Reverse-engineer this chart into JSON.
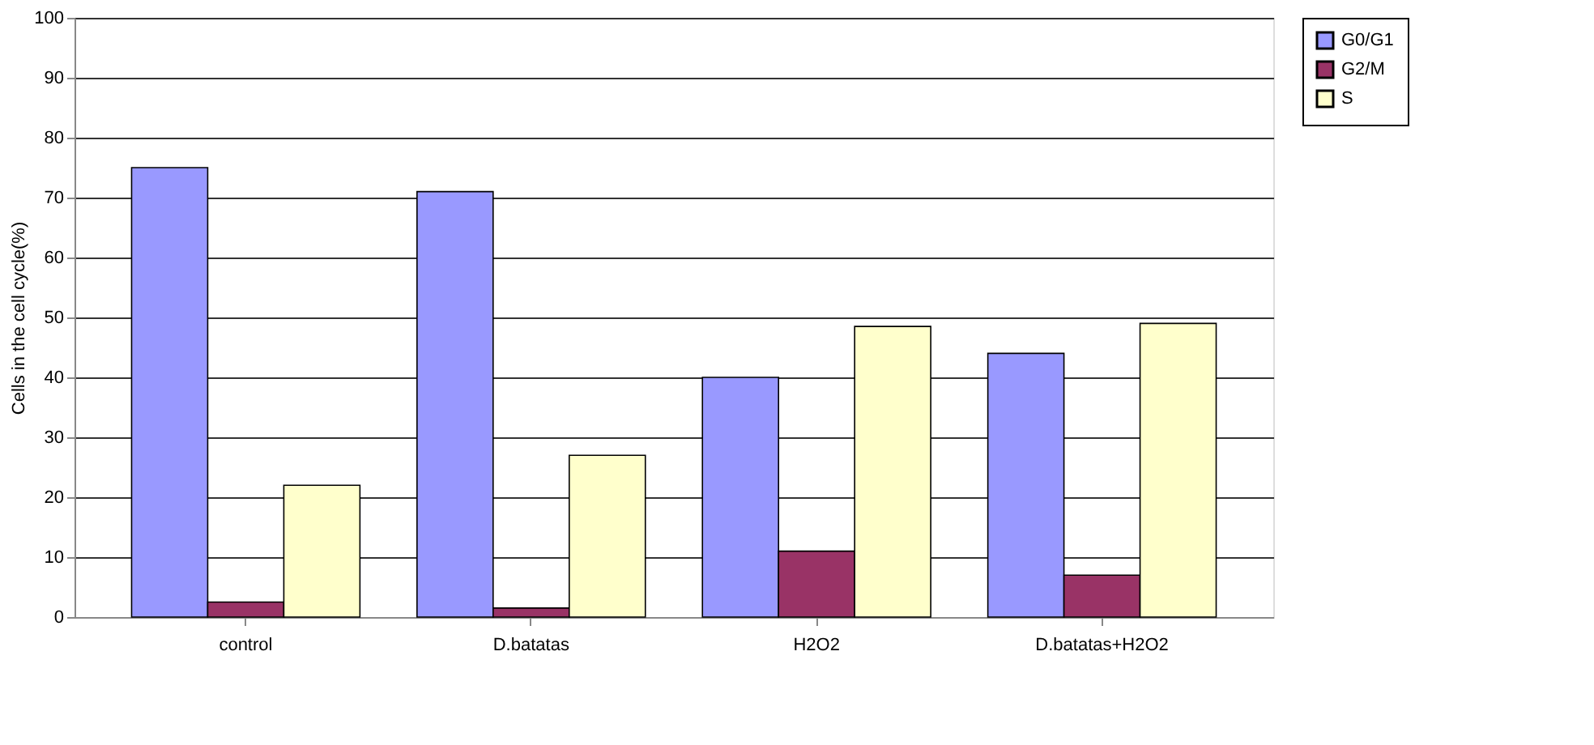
{
  "chart_data": {
    "type": "bar",
    "ylabel": "Cells in the cell cycle(%)",
    "categories": [
      "control",
      "D.batatas",
      "H2O2",
      "D.batatas+H2O2"
    ],
    "series": [
      {
        "name": "G0/G1",
        "color": "#9999ff",
        "values": [
          75,
          71,
          40,
          44
        ]
      },
      {
        "name": "G2/M",
        "color": "#993366",
        "values": [
          2.5,
          1.5,
          11,
          7
        ]
      },
      {
        "name": "S",
        "color": "#ffffcc",
        "values": [
          22,
          27,
          48.5,
          49
        ]
      }
    ],
    "ylim": [
      0,
      100
    ],
    "yticks": [
      0,
      10,
      20,
      30,
      40,
      50,
      60,
      70,
      80,
      90,
      100
    ],
    "grid": "y",
    "legend": "right"
  }
}
